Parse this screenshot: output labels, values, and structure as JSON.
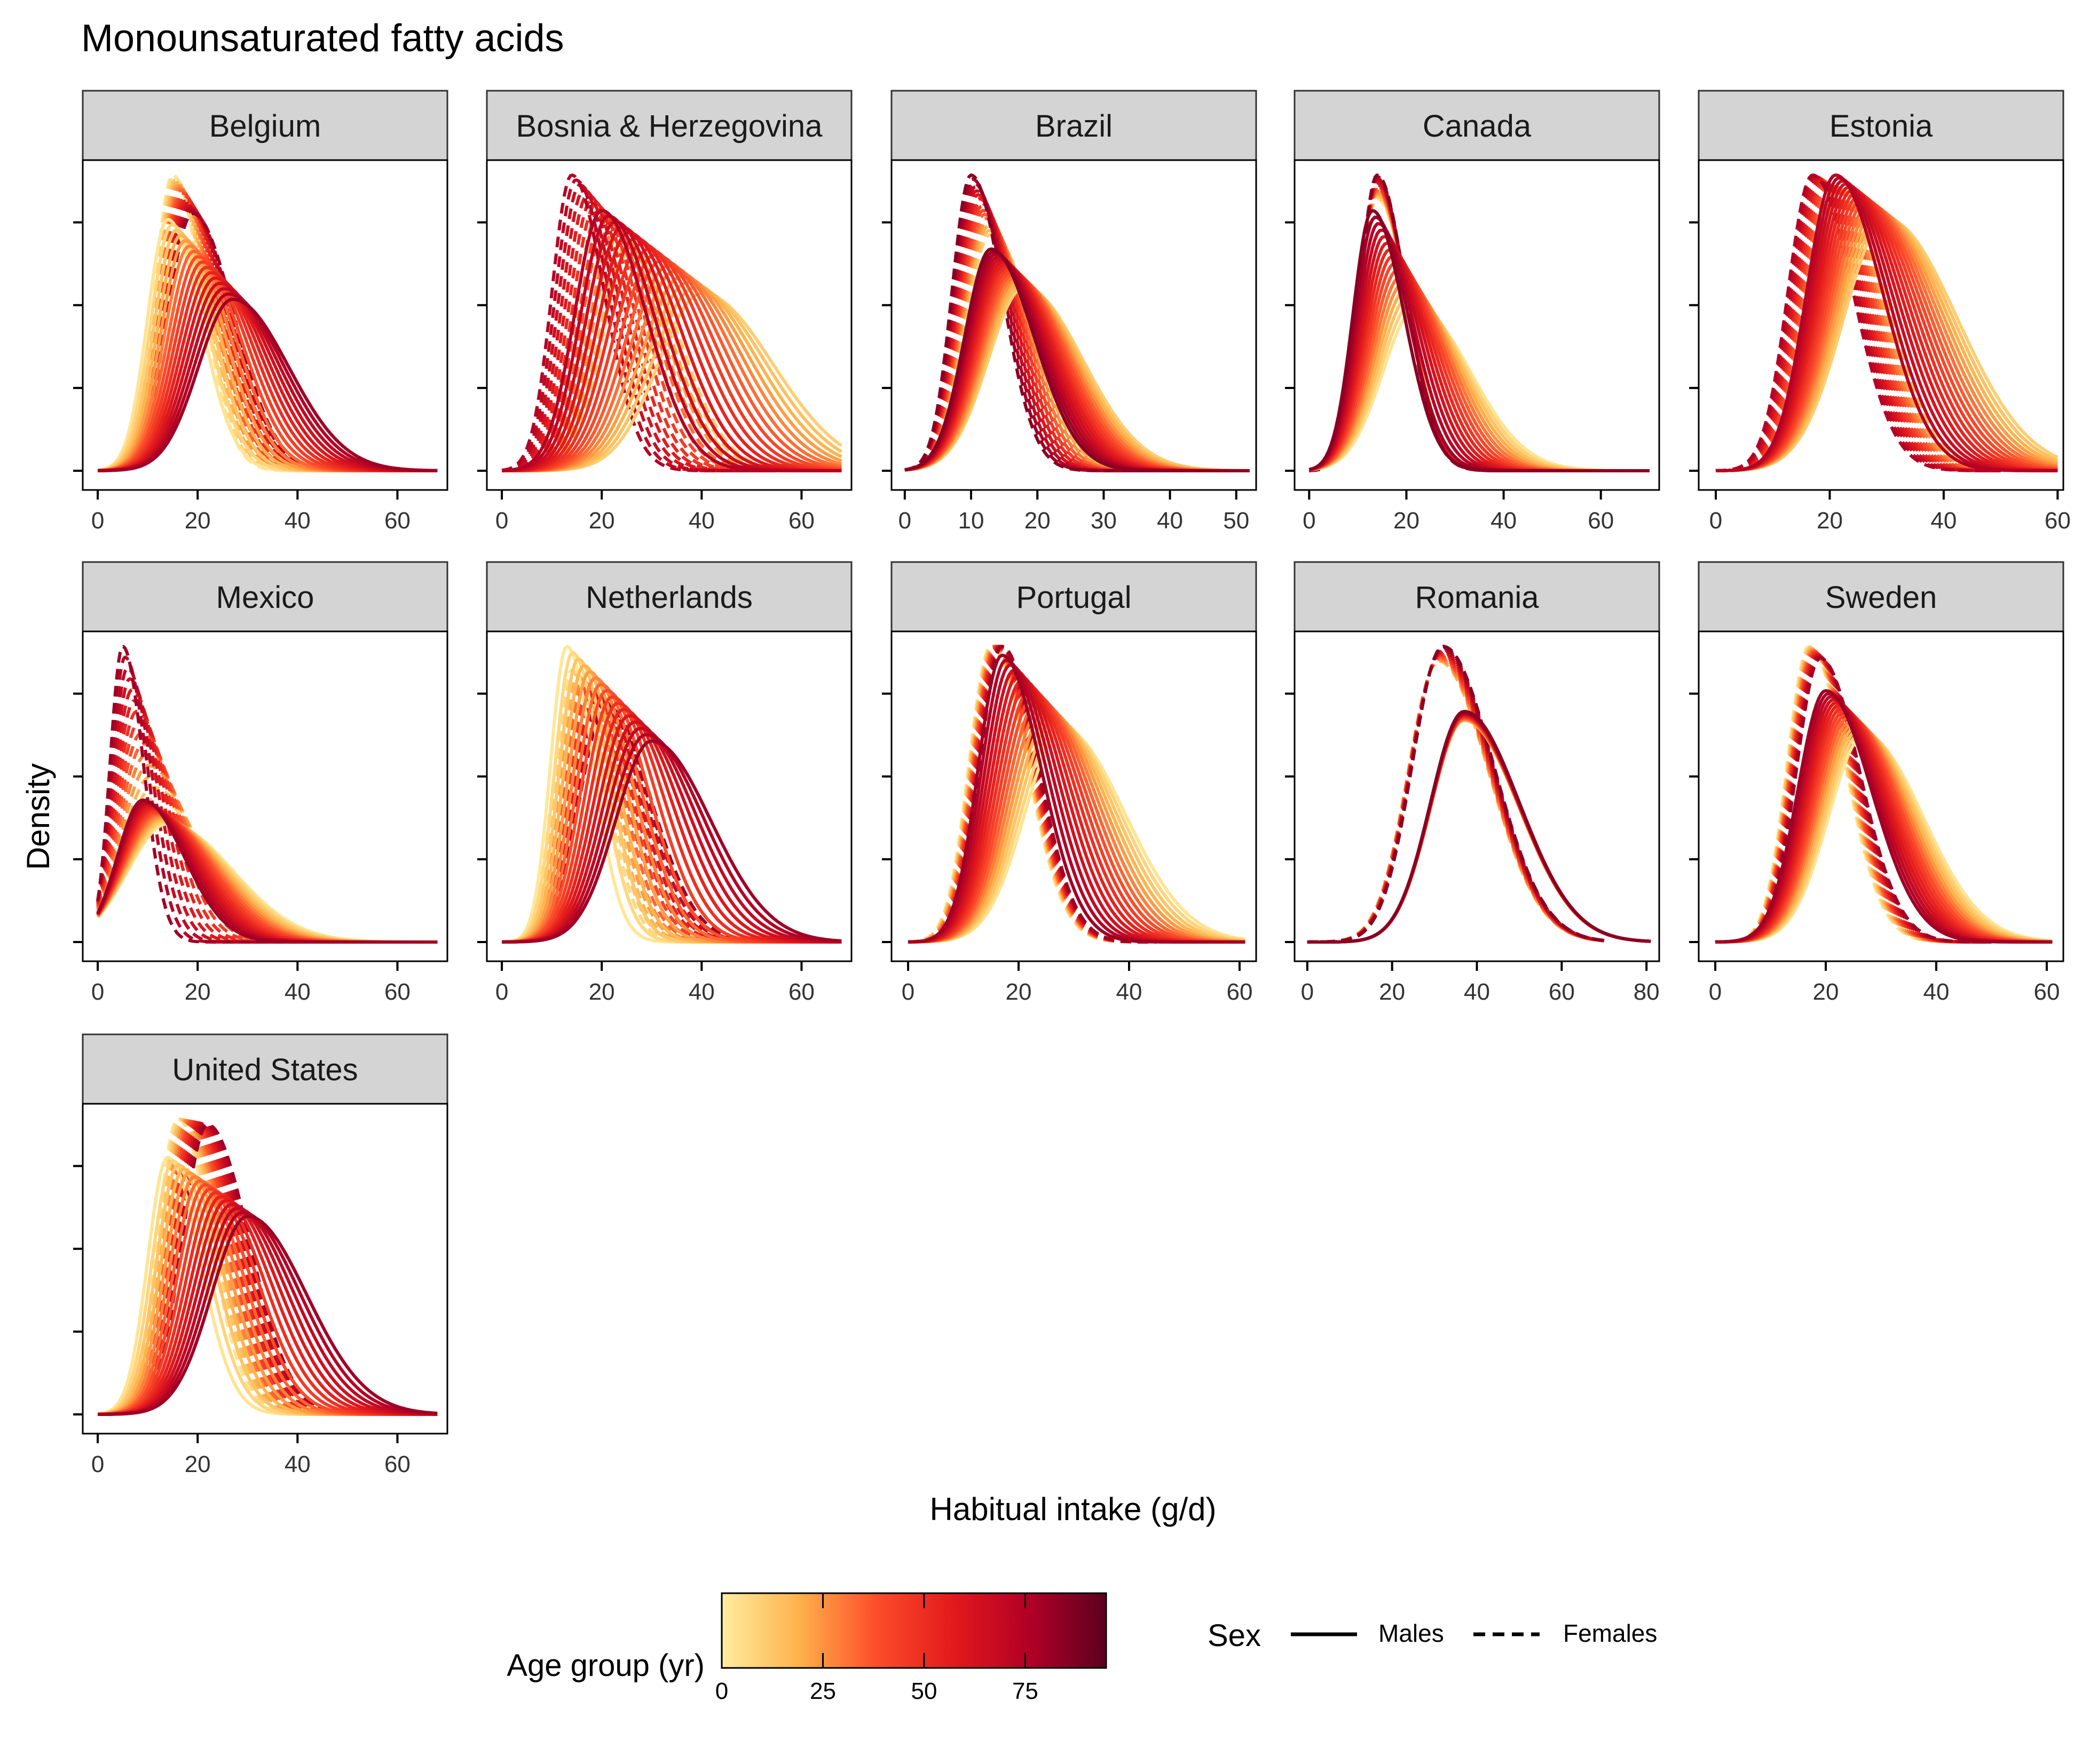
{
  "chart_data": {
    "type": "line",
    "title": "Monounsaturated fatty acids",
    "xlabel": "Habitual intake (g/d)",
    "ylabel": "Density",
    "grid": false,
    "y_tick_labels_shown": false,
    "legend_position": "bottom",
    "legends": {
      "color": {
        "title": "Age group (yr)",
        "ticks": [
          0,
          25,
          50,
          75
        ],
        "range": [
          0,
          95
        ],
        "colors": [
          "#FFEDA0",
          "#FEB24C",
          "#FC4E2A",
          "#E31A1C",
          "#B10026",
          "#5C0020"
        ]
      },
      "linetype": {
        "title": "Sex",
        "entries": [
          {
            "label": "Males",
            "style": "solid"
          },
          {
            "label": "Females",
            "style": "dashed"
          }
        ]
      }
    },
    "note": "Each curve is the habitual-intake density for one age group; age encoded by color, sex by line type.",
    "panels": [
      {
        "country": "Belgium",
        "xlim": [
          -3,
          70
        ],
        "xticks": [
          0,
          20,
          40,
          60
        ],
        "males": {
          "age_start": 3,
          "age_end": 80,
          "young": {
            "mode": 14,
            "sd": 5.6,
            "peak": 0.85
          },
          "old": {
            "mode": 27,
            "sd": 9.5,
            "peak": 0.58
          },
          "xmax": 68
        },
        "females": {
          "age_start": 3,
          "age_end": 80,
          "young": {
            "mode": 15,
            "sd": 5.0,
            "peak": 1.0
          },
          "old": {
            "mode": 19,
            "sd": 7.0,
            "peak": 0.87
          },
          "xmax": 45
        }
      },
      {
        "country": "Bosnia & Herzegovina",
        "xlim": [
          -3,
          70
        ],
        "xticks": [
          0,
          20,
          40,
          60
        ],
        "males": {
          "age_start": 10,
          "age_end": 75,
          "young": {
            "mode": 40,
            "sd": 12,
            "peak": 0.6
          },
          "old": {
            "mode": 20,
            "sd": 7.5,
            "peak": 0.88
          },
          "xmax": 68
        },
        "females": {
          "age_start": 10,
          "age_end": 75,
          "young": {
            "mode": 26,
            "sd": 8,
            "peak": 0.75
          },
          "old": {
            "mode": 14,
            "sd": 5.5,
            "peak": 1.0
          },
          "xmax": 55
        }
      },
      {
        "country": "Brazil",
        "xlim": [
          -2,
          53
        ],
        "xticks": [
          0,
          10,
          20,
          30,
          40,
          50
        ],
        "males": {
          "age_start": 10,
          "age_end": 85,
          "young": {
            "mode": 18,
            "sd": 7.5,
            "peak": 0.62
          },
          "old": {
            "mode": 13,
            "sd": 5.5,
            "peak": 0.75
          },
          "xmax": 52
        },
        "females": {
          "age_start": 10,
          "age_end": 85,
          "young": {
            "mode": 13,
            "sd": 5.5,
            "peak": 0.8
          },
          "old": {
            "mode": 10,
            "sd": 4.0,
            "peak": 1.0
          },
          "xmax": 40
        }
      },
      {
        "country": "Canada",
        "xlim": [
          -3,
          72
        ],
        "xticks": [
          0,
          20,
          40,
          60
        ],
        "males": {
          "age_start": 3,
          "age_end": 85,
          "young": {
            "mode": 22,
            "sd": 9.5,
            "peak": 0.55
          },
          "old": {
            "mode": 13,
            "sd": 5.5,
            "peak": 0.88
          },
          "xmax": 70
        },
        "females": {
          "age_start": 3,
          "age_end": 85,
          "young": {
            "mode": 14,
            "sd": 5.5,
            "peak": 0.92
          },
          "old": {
            "mode": 14,
            "sd": 5.0,
            "peak": 1.0
          },
          "xmax": 50
        }
      },
      {
        "country": "Estonia",
        "xlim": [
          -3,
          61
        ],
        "xticks": [
          0,
          20,
          40,
          60
        ],
        "males": {
          "age_start": 10,
          "age_end": 75,
          "young": {
            "mode": 30,
            "sd": 10.5,
            "peak": 0.85
          },
          "old": {
            "mode": 21,
            "sd": 7.0,
            "peak": 1.0
          },
          "xmax": 60
        },
        "females": {
          "age_start": 10,
          "age_end": 75,
          "young": {
            "mode": 22,
            "sd": 7.0,
            "peak": 0.95
          },
          "old": {
            "mode": 17,
            "sd": 6.0,
            "peak": 1.0
          },
          "xmax": 50
        }
      },
      {
        "country": "Mexico",
        "xlim": [
          -3,
          70
        ],
        "xticks": [
          0,
          20,
          40,
          60
        ],
        "males": {
          "age_start": 3,
          "age_end": 80,
          "young": {
            "mode": 14,
            "sd": 11,
            "peak": 0.4
          },
          "old": {
            "mode": 9,
            "sd": 7,
            "peak": 0.48
          },
          "xmax": 68
        },
        "females": {
          "age_start": 3,
          "age_end": 80,
          "young": {
            "mode": 12,
            "sd": 9,
            "peak": 0.45
          },
          "old": {
            "mode": 5,
            "sd": 3.5,
            "peak": 1.0
          },
          "xmax": 45
        }
      },
      {
        "country": "Netherlands",
        "xlim": [
          -3,
          70
        ],
        "xticks": [
          0,
          20,
          40,
          60
        ],
        "males": {
          "age_start": 2,
          "age_end": 80,
          "young": {
            "mode": 13,
            "sd": 4.5,
            "peak": 1.0
          },
          "old": {
            "mode": 30,
            "sd": 10,
            "peak": 0.68
          },
          "xmax": 68
        },
        "females": {
          "age_start": 2,
          "age_end": 80,
          "young": {
            "mode": 14,
            "sd": 5.0,
            "peak": 0.92
          },
          "old": {
            "mode": 21,
            "sd": 7.5,
            "peak": 0.8
          },
          "xmax": 50
        }
      },
      {
        "country": "Portugal",
        "xlim": [
          -3,
          63
        ],
        "xticks": [
          0,
          20,
          40,
          60
        ],
        "males": {
          "age_start": 3,
          "age_end": 80,
          "young": {
            "mode": 28,
            "sd": 9.5,
            "peak": 0.72
          },
          "old": {
            "mode": 17,
            "sd": 6.0,
            "peak": 0.97
          },
          "xmax": 61
        },
        "females": {
          "age_start": 3,
          "age_end": 80,
          "young": {
            "mode": 15,
            "sd": 5.5,
            "peak": 1.0
          },
          "old": {
            "mode": 17,
            "sd": 5.5,
            "peak": 1.0
          },
          "xmax": 45
        }
      },
      {
        "country": "Romania",
        "xlim": [
          -3,
          83
        ],
        "xticks": [
          0,
          20,
          40,
          60,
          80
        ],
        "males": {
          "age_start": 18,
          "age_end": 85,
          "young": {
            "mode": 37,
            "sd": 11,
            "peak": 0.75
          },
          "old": {
            "mode": 37,
            "sd": 11,
            "peak": 0.78
          },
          "xmax": 81
        },
        "females": {
          "age_start": 18,
          "age_end": 85,
          "young": {
            "mode": 31,
            "sd": 10,
            "peak": 0.95
          },
          "old": {
            "mode": 32,
            "sd": 10,
            "peak": 1.0
          },
          "xmax": 70
        }
      },
      {
        "country": "Sweden",
        "xlim": [
          -3,
          63
        ],
        "xticks": [
          0,
          20,
          40,
          60
        ],
        "males": {
          "age_start": 3,
          "age_end": 80,
          "young": {
            "mode": 27,
            "sd": 9.0,
            "peak": 0.7
          },
          "old": {
            "mode": 20,
            "sd": 7.0,
            "peak": 0.85
          },
          "xmax": 61
        },
        "females": {
          "age_start": 3,
          "age_end": 80,
          "young": {
            "mode": 17,
            "sd": 5.5,
            "peak": 1.0
          },
          "old": {
            "mode": 19,
            "sd": 6.0,
            "peak": 0.96
          },
          "xmax": 50
        }
      },
      {
        "country": "United States",
        "xlim": [
          -3,
          70
        ],
        "xticks": [
          0,
          20,
          40,
          60
        ],
        "males": {
          "age_start": 3,
          "age_end": 80,
          "young": {
            "mode": 14,
            "sd": 5.5,
            "peak": 0.87
          },
          "old": {
            "mode": 30,
            "sd": 10,
            "peak": 0.67
          },
          "xmax": 68
        },
        "females": {
          "age_start": 3,
          "age_end": 80,
          "young": {
            "mode": 16,
            "sd": 5.5,
            "peak": 1.0
          },
          "old": {
            "mode": 22,
            "sd": 7.0,
            "peak": 0.98
          },
          "xmax": 50
        }
      }
    ]
  }
}
